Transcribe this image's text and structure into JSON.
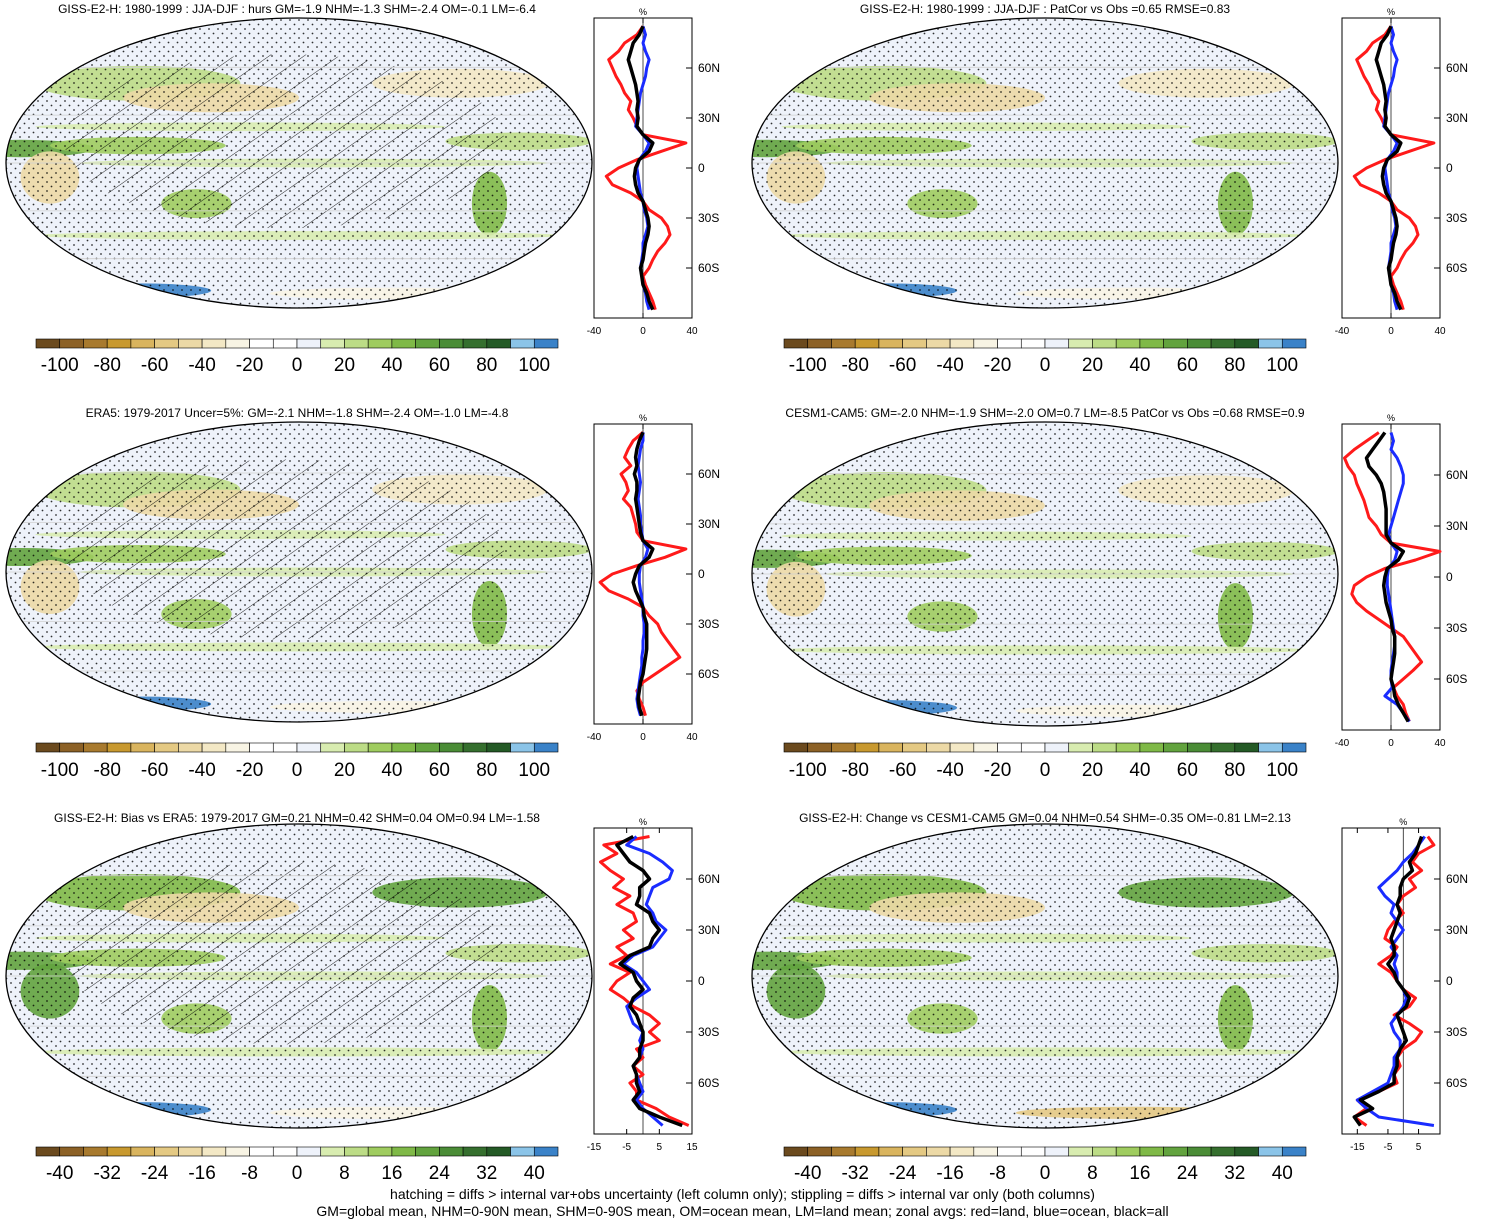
{
  "palette": [
    "#6b4a1e",
    "#8c6126",
    "#a87a2e",
    "#c8992f",
    "#d9b45e",
    "#e4c983",
    "#ecd9a6",
    "#f3e8c5",
    "#f8f4e4",
    "#ffffff",
    "#ffffff",
    "#eef2fa",
    "#d8ecb0",
    "#bcdc86",
    "#9fcc5f",
    "#7fb947",
    "#62a33e",
    "#4a8c36",
    "#356f2e",
    "#245a26",
    "#8bc4e8",
    "#3a82c8"
  ],
  "stipple_note": "hatching = diffs > internal var+obs uncertainty (left column only); stippling = diffs > internal var only (both columns)",
  "means_note": "GM=global mean, NHM=0-90N mean, SHM=0-90S mean, OM=ocean mean, LM=land mean; zonal avgs: red=land, blue=ocean, black=all",
  "chart_data": [
    {
      "type": "heatmap",
      "title": "GISS-E2-H: 1980-1999 : JJA-DJF : hurs GM=-1.9 NHM=-1.3 SHM=-2.4 OM=-0.1 LM=-6.4",
      "colorbar_ticks": [
        "-100",
        "-80",
        "-60",
        "-40",
        "-20",
        "0",
        "20",
        "40",
        "60",
        "80",
        "100"
      ],
      "colorbar_range": [
        -110,
        110
      ],
      "zonal_profile": {
        "unit": "%",
        "xlim": [
          -40,
          40
        ],
        "xticks": [
          "-40",
          "0",
          "40"
        ],
        "yticks": [
          "60N",
          "30N",
          "0",
          "30S",
          "60S"
        ],
        "ytick_values": [
          60,
          30,
          0,
          -30,
          -60
        ],
        "lat": [
          85,
          80,
          75,
          70,
          65,
          60,
          55,
          50,
          45,
          40,
          35,
          30,
          25,
          20,
          15,
          10,
          5,
          0,
          -5,
          -10,
          -15,
          -20,
          -25,
          -30,
          -35,
          -40,
          -45,
          -50,
          -55,
          -60,
          -65,
          -70,
          -75,
          -80,
          -85
        ],
        "land": [
          0,
          -5,
          -15,
          -20,
          -28,
          -25,
          -22,
          -18,
          -15,
          -10,
          -12,
          -8,
          -5,
          0,
          35,
          15,
          -5,
          -20,
          -30,
          -25,
          -10,
          0,
          5,
          15,
          20,
          22,
          18,
          12,
          8,
          5,
          0,
          2,
          5,
          8,
          10
        ],
        "ocean": [
          0,
          2,
          0,
          2,
          5,
          3,
          2,
          0,
          -2,
          -3,
          -4,
          -5,
          -6,
          0,
          5,
          2,
          -3,
          -5,
          -4,
          -3,
          -2,
          0,
          1,
          3,
          4,
          2,
          0,
          0,
          -1,
          -2,
          -1,
          0,
          2,
          3,
          5
        ],
        "all": [
          0,
          -3,
          -8,
          -10,
          -12,
          -10,
          -8,
          -6,
          -5,
          -4,
          -5,
          -4,
          -5,
          0,
          8,
          5,
          -3,
          -6,
          -7,
          -6,
          -4,
          0,
          2,
          4,
          5,
          4,
          2,
          1,
          0,
          -2,
          -1,
          0,
          3,
          5,
          8
        ]
      }
    },
    {
      "type": "heatmap",
      "title": "GISS-E2-H: 1980-1999 : JJA-DJF : PatCor vs Obs =0.65 RMSE=0.83",
      "colorbar_ticks": [
        "-100",
        "-80",
        "-60",
        "-40",
        "-20",
        "0",
        "20",
        "40",
        "60",
        "80",
        "100"
      ],
      "colorbar_range": [
        -110,
        110
      ],
      "zonal_profile": {
        "unit": "%",
        "xlim": [
          -40,
          40
        ],
        "xticks": [
          "-40",
          "0",
          "40"
        ],
        "yticks": [
          "60N",
          "30N",
          "0",
          "30S",
          "60S"
        ],
        "ytick_values": [
          60,
          30,
          0,
          -30,
          -60
        ],
        "lat": [
          85,
          80,
          75,
          70,
          65,
          60,
          55,
          50,
          45,
          40,
          35,
          30,
          25,
          20,
          15,
          10,
          5,
          0,
          -5,
          -10,
          -15,
          -20,
          -25,
          -30,
          -35,
          -40,
          -45,
          -50,
          -55,
          -60,
          -65,
          -70,
          -75,
          -80,
          -85
        ],
        "land": [
          0,
          -5,
          -15,
          -20,
          -28,
          -25,
          -22,
          -18,
          -15,
          -10,
          -12,
          -8,
          -5,
          0,
          35,
          15,
          -5,
          -20,
          -30,
          -25,
          -10,
          0,
          5,
          15,
          20,
          22,
          18,
          12,
          8,
          5,
          0,
          2,
          5,
          8,
          10
        ],
        "ocean": [
          0,
          2,
          0,
          2,
          5,
          3,
          2,
          0,
          -2,
          -3,
          -4,
          -5,
          -6,
          0,
          5,
          2,
          -3,
          -5,
          -4,
          -3,
          -2,
          0,
          1,
          3,
          4,
          2,
          0,
          0,
          -1,
          -2,
          -1,
          0,
          2,
          3,
          5
        ],
        "all": [
          0,
          -3,
          -8,
          -10,
          -12,
          -10,
          -8,
          -6,
          -5,
          -4,
          -5,
          -4,
          -5,
          0,
          8,
          5,
          -3,
          -6,
          -7,
          -6,
          -4,
          0,
          2,
          4,
          5,
          4,
          2,
          1,
          0,
          -2,
          -1,
          0,
          3,
          5,
          8
        ]
      }
    },
    {
      "type": "heatmap",
      "title": "ERA5: 1979-2017 Uncer=5%: GM=-2.1 NHM=-1.8 SHM=-2.4 OM=-1.0 LM=-4.8",
      "colorbar_ticks": [
        "-100",
        "-80",
        "-60",
        "-40",
        "-20",
        "0",
        "20",
        "40",
        "60",
        "80",
        "100"
      ],
      "colorbar_range": [
        -110,
        110
      ],
      "zonal_profile": {
        "unit": "%",
        "xlim": [
          -40,
          40
        ],
        "xticks": [
          "-40",
          "0",
          "40"
        ],
        "yticks": [
          "60N",
          "30N",
          "0",
          "30S",
          "60S"
        ],
        "ytick_values": [
          60,
          30,
          0,
          -30,
          -60
        ],
        "lat": [
          85,
          80,
          75,
          70,
          65,
          60,
          55,
          50,
          45,
          40,
          35,
          30,
          25,
          20,
          15,
          10,
          5,
          0,
          -5,
          -10,
          -15,
          -20,
          -25,
          -30,
          -35,
          -40,
          -45,
          -50,
          -55,
          -60,
          -65,
          -70,
          -75,
          -80,
          -85
        ],
        "land": [
          0,
          -8,
          -12,
          -15,
          -10,
          -18,
          -14,
          -12,
          -16,
          -10,
          -8,
          -6,
          -5,
          0,
          35,
          18,
          -5,
          -25,
          -35,
          -28,
          -12,
          0,
          5,
          12,
          15,
          20,
          25,
          30,
          20,
          10,
          0,
          -5,
          -3,
          0,
          2
        ],
        "ocean": [
          0,
          0,
          -2,
          -3,
          -4,
          -3,
          -2,
          -3,
          -4,
          -3,
          -2,
          -2,
          -1,
          0,
          4,
          2,
          -2,
          -3,
          -3,
          -2,
          -1,
          0,
          0,
          1,
          1,
          0,
          0,
          -1,
          -1,
          -2,
          -3,
          -4,
          -5,
          -4,
          -2
        ],
        "all": [
          0,
          -3,
          -5,
          -6,
          -5,
          -7,
          -5,
          -5,
          -6,
          -5,
          -4,
          -3,
          -2,
          0,
          8,
          5,
          -3,
          -6,
          -8,
          -6,
          -3,
          0,
          1,
          3,
          3,
          3,
          3,
          2,
          1,
          0,
          -2,
          -3,
          -4,
          -3,
          -1
        ]
      }
    },
    {
      "type": "heatmap",
      "title": "CESM1-CAM5: GM=-2.0 NHM=-1.9 SHM=-2.0 OM=0.7 LM=-8.5 PatCor vs Obs =0.68 RMSE=0.9",
      "colorbar_ticks": [
        "-100",
        "-80",
        "-60",
        "-40",
        "-20",
        "0",
        "20",
        "40",
        "60",
        "80",
        "100"
      ],
      "colorbar_range": [
        -110,
        110
      ],
      "zonal_profile": {
        "unit": "%",
        "xlim": [
          -40,
          40
        ],
        "xticks": [
          "-40",
          "0",
          "40"
        ],
        "yticks": [
          "60N",
          "30N",
          "0",
          "30S",
          "60S"
        ],
        "ytick_values": [
          60,
          30,
          0,
          -30,
          -60
        ],
        "lat": [
          85,
          80,
          75,
          70,
          65,
          60,
          55,
          50,
          45,
          40,
          35,
          30,
          25,
          20,
          15,
          10,
          5,
          0,
          -5,
          -10,
          -15,
          -20,
          -25,
          -30,
          -35,
          -40,
          -45,
          -50,
          -55,
          -60,
          -65,
          -70,
          -75,
          -80,
          -85
        ],
        "land": [
          -10,
          -20,
          -30,
          -38,
          -35,
          -30,
          -28,
          -25,
          -22,
          -20,
          -18,
          -12,
          -8,
          0,
          40,
          20,
          -5,
          -20,
          -30,
          -32,
          -28,
          -20,
          -10,
          0,
          10,
          15,
          20,
          25,
          18,
          10,
          2,
          5,
          10,
          12,
          15
        ],
        "ocean": [
          0,
          2,
          0,
          5,
          8,
          10,
          10,
          8,
          6,
          4,
          2,
          0,
          -2,
          0,
          5,
          3,
          -2,
          -3,
          -3,
          -2,
          -1,
          0,
          1,
          2,
          3,
          3,
          2,
          1,
          0,
          0,
          1,
          -5,
          5,
          10,
          15
        ],
        "all": [
          -5,
          -10,
          -15,
          -20,
          -18,
          -12,
          -8,
          -6,
          -5,
          -4,
          -4,
          -4,
          -4,
          0,
          10,
          6,
          -3,
          -5,
          -6,
          -5,
          -4,
          -2,
          0,
          1,
          3,
          3,
          3,
          2,
          1,
          0,
          2,
          3,
          6,
          10,
          14
        ]
      }
    },
    {
      "type": "heatmap",
      "title": "GISS-E2-H: Bias vs ERA5: 1979-2017 GM=0.21 NHM=0.42 SHM=0.04 OM=0.94 LM=-1.58",
      "colorbar_ticks": [
        "-40",
        "-32",
        "-24",
        "-16",
        "-8",
        "0",
        "8",
        "16",
        "24",
        "32",
        "40"
      ],
      "colorbar_range": [
        -44,
        44
      ],
      "zonal_profile": {
        "unit": "%",
        "xlim": [
          -15,
          15
        ],
        "xticks": [
          "-15",
          "-5",
          "5",
          "15"
        ],
        "yticks": [
          "60N",
          "30N",
          "0",
          "30S",
          "60S"
        ],
        "ytick_values": [
          60,
          30,
          0,
          -30,
          -60
        ],
        "lat": [
          85,
          80,
          75,
          70,
          65,
          60,
          55,
          50,
          45,
          40,
          35,
          30,
          25,
          20,
          15,
          10,
          5,
          0,
          -5,
          -10,
          -15,
          -20,
          -25,
          -30,
          -35,
          -40,
          -45,
          -50,
          -55,
          -60,
          -65,
          -70,
          -75,
          -80,
          -85
        ],
        "land": [
          2,
          -12,
          -8,
          -13,
          -10,
          -6,
          -9,
          -4,
          -8,
          -3,
          -2,
          -6,
          -3,
          -8,
          -5,
          -10,
          -4,
          -8,
          -10,
          -6,
          -3,
          2,
          5,
          2,
          5,
          -2,
          0,
          -3,
          0,
          -4,
          -2,
          -2,
          4,
          8,
          14
        ],
        "ocean": [
          -2,
          -5,
          2,
          6,
          9,
          8,
          3,
          2,
          1,
          3,
          4,
          7,
          5,
          3,
          -3,
          -6,
          -2,
          0,
          2,
          -2,
          -5,
          -4,
          -3,
          0,
          -1,
          0,
          -1,
          -3,
          -2,
          -1,
          0,
          -2,
          0,
          3,
          6
        ],
        "all": [
          -3,
          -8,
          -6,
          -4,
          0,
          2,
          -1,
          -1,
          -2,
          2,
          3,
          5,
          3,
          2,
          -4,
          -7,
          -3,
          -2,
          0,
          -3,
          -4,
          -2,
          -1,
          0,
          0,
          -1,
          -1,
          -3,
          -2,
          -2,
          -1,
          -3,
          -1,
          5,
          12
        ]
      }
    },
    {
      "type": "heatmap",
      "title": "GISS-E2-H: Change vs CESM1-CAM5 GM=0.04 NHM=0.54 SHM=-0.35 OM=-0.81 LM=2.13",
      "colorbar_ticks": [
        "-40",
        "-32",
        "-24",
        "-16",
        "-8",
        "0",
        "8",
        "16",
        "24",
        "32",
        "40"
      ],
      "colorbar_range": [
        -44,
        44
      ],
      "zonal_profile": {
        "unit": "%",
        "xlim": [
          -20,
          12
        ],
        "xticks": [
          "-15",
          "-5",
          "5"
        ],
        "yticks": [
          "60N",
          "30N",
          "0",
          "30S",
          "60S"
        ],
        "ytick_values": [
          60,
          30,
          0,
          -30,
          -60
        ],
        "lat": [
          85,
          80,
          75,
          70,
          65,
          60,
          55,
          50,
          45,
          40,
          35,
          30,
          25,
          20,
          15,
          10,
          5,
          0,
          -5,
          -10,
          -15,
          -20,
          -25,
          -30,
          -35,
          -40,
          -45,
          -50,
          -55,
          -60,
          -65,
          -70,
          -75,
          -80,
          -85
        ],
        "land": [
          8,
          10,
          5,
          3,
          6,
          2,
          4,
          0,
          -2,
          0,
          -3,
          -5,
          -6,
          -2,
          -4,
          -8,
          -4,
          -2,
          0,
          4,
          2,
          -3,
          2,
          6,
          4,
          0,
          -2,
          -1,
          -3,
          -2,
          -8,
          -15,
          -12,
          -16,
          -12
        ],
        "ocean": [
          7,
          5,
          3,
          0,
          -2,
          -5,
          -8,
          -6,
          -3,
          -4,
          -2,
          0,
          -2,
          -4,
          -2,
          -3,
          -2,
          -2,
          0,
          1,
          0,
          -2,
          -4,
          -3,
          -1,
          -1,
          -3,
          -3,
          -4,
          -5,
          -10,
          -15,
          -12,
          -8,
          10
        ],
        "all": [
          6,
          5,
          4,
          2,
          3,
          0,
          -1,
          -1,
          -2,
          -1,
          -2,
          -3,
          -4,
          -3,
          -3,
          -5,
          -3,
          -2,
          0,
          2,
          1,
          -2,
          -1,
          0,
          1,
          -1,
          -2,
          -2,
          -3,
          -3,
          -8,
          -14,
          -10,
          -16,
          -14
        ]
      }
    }
  ]
}
